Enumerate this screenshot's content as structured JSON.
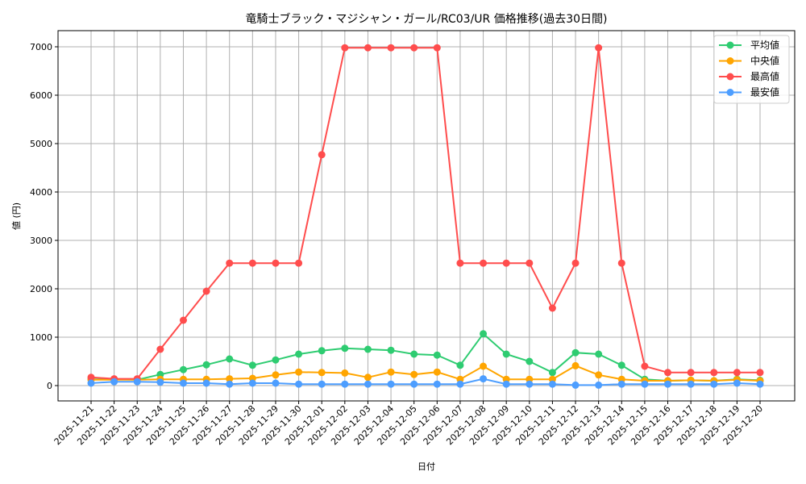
{
  "chart_data": {
    "type": "line",
    "title": "竜騎士ブラック・マジシャン・ガール/RC03/UR 価格推移(過去30日間)",
    "xlabel": "日付",
    "ylabel": "値 (円)",
    "ylim": [
      -350,
      7300
    ],
    "yticks": [
      0,
      1000,
      2000,
      3000,
      4000,
      5000,
      6000,
      7000
    ],
    "grid": true,
    "legend_position": "upper right",
    "categories": [
      "2025-11-21",
      "2025-11-22",
      "2025-11-23",
      "2025-11-24",
      "2025-11-25",
      "2025-11-26",
      "2025-11-27",
      "2025-11-28",
      "2025-11-29",
      "2025-11-30",
      "2025-12-01",
      "2025-12-02",
      "2025-12-03",
      "2025-12-04",
      "2025-12-05",
      "2025-12-06",
      "2025-12-07",
      "2025-12-08",
      "2025-12-09",
      "2025-12-10",
      "2025-12-11",
      "2025-12-12",
      "2025-12-13",
      "2025-12-14",
      "2025-12-15",
      "2025-12-16",
      "2025-12-17",
      "2025-12-18",
      "2025-12-19",
      "2025-12-20"
    ],
    "series": [
      {
        "name": "平均値",
        "color": "#2ecc71",
        "values": [
          130,
          130,
          120,
          230,
          330,
          430,
          550,
          420,
          530,
          650,
          720,
          770,
          750,
          730,
          650,
          630,
          420,
          1070,
          650,
          500,
          270,
          680,
          650,
          420,
          130,
          100,
          110,
          100,
          130,
          110
        ]
      },
      {
        "name": "中央値",
        "color": "#ffa500",
        "values": [
          120,
          120,
          120,
          130,
          130,
          130,
          140,
          150,
          220,
          280,
          270,
          260,
          170,
          280,
          230,
          280,
          130,
          400,
          130,
          130,
          130,
          410,
          220,
          130,
          100,
          100,
          110,
          100,
          120,
          100
        ]
      },
      {
        "name": "最高値",
        "color": "#ff4d4d",
        "values": [
          170,
          140,
          140,
          750,
          1350,
          1950,
          2530,
          2530,
          2530,
          2530,
          4770,
          6980,
          6980,
          6980,
          6980,
          6980,
          2530,
          2530,
          2530,
          2530,
          1600,
          2530,
          6980,
          2530,
          400,
          270,
          270,
          270,
          270,
          270
        ]
      },
      {
        "name": "最安値",
        "color": "#4d9eff",
        "values": [
          50,
          80,
          80,
          70,
          50,
          50,
          30,
          50,
          50,
          30,
          30,
          30,
          30,
          30,
          30,
          30,
          30,
          140,
          30,
          30,
          30,
          10,
          10,
          30,
          30,
          30,
          30,
          30,
          50,
          30
        ]
      }
    ]
  }
}
